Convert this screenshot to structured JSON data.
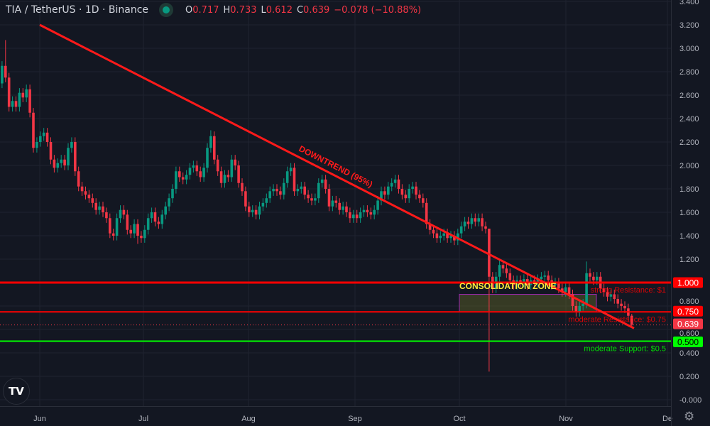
{
  "header": {
    "symbol": "TIA / TetherUS · 1D · Binance",
    "status_color": "#089981",
    "o_label": "O",
    "o": "0.717",
    "h_label": "H",
    "h": "0.733",
    "l_label": "L",
    "l": "0.612",
    "c_label": "C",
    "c": "0.639",
    "change": "−0.078 (−10.88%)"
  },
  "chart_data": {
    "type": "candlestick",
    "interval": "1D",
    "y_ticks": [
      "3.400",
      "3.200",
      "3.000",
      "2.800",
      "2.600",
      "2.400",
      "2.200",
      "2.000",
      "1.800",
      "1.600",
      "1.400",
      "1.200",
      "1.000",
      "0.800",
      "0.600",
      "0.400",
      "0.200",
      "-0.000"
    ],
    "ylim": [
      0,
      3.4
    ],
    "x_ticks": [
      "Jun",
      "Jul",
      "Aug",
      "Sep",
      "Oct",
      "Nov",
      "De"
    ],
    "grid": true,
    "colors": {
      "up": "#089981",
      "down": "#f23645",
      "background": "#131722",
      "grid": "#1f2330"
    },
    "closes": [
      2.7,
      2.85,
      2.75,
      2.5,
      2.55,
      2.5,
      2.62,
      2.58,
      2.65,
      2.45,
      2.15,
      2.2,
      2.25,
      2.28,
      2.2,
      2.05,
      1.98,
      2.02,
      2.05,
      2.0,
      2.15,
      2.2,
      1.95,
      1.82,
      1.78,
      1.75,
      1.72,
      1.68,
      1.62,
      1.65,
      1.6,
      1.55,
      1.42,
      1.4,
      1.55,
      1.62,
      1.58,
      1.45,
      1.42,
      1.5,
      1.4,
      1.38,
      1.45,
      1.55,
      1.6,
      1.52,
      1.5,
      1.58,
      1.65,
      1.72,
      1.8,
      1.95,
      1.9,
      1.88,
      1.92,
      1.98,
      2.0,
      1.95,
      1.9,
      1.98,
      2.15,
      2.25,
      2.05,
      1.95,
      1.85,
      1.92,
      1.9,
      2.05,
      2.0,
      1.85,
      1.78,
      1.65,
      1.6,
      1.62,
      1.58,
      1.65,
      1.68,
      1.72,
      1.78,
      1.8,
      1.78,
      1.75,
      1.85,
      1.95,
      1.98,
      1.78,
      1.8,
      1.82,
      1.75,
      1.72,
      1.7,
      1.72,
      1.85,
      1.88,
      1.8,
      1.65,
      1.7,
      1.68,
      1.62,
      1.65,
      1.6,
      1.55,
      1.58,
      1.55,
      1.6,
      1.62,
      1.6,
      1.58,
      1.62,
      1.7,
      1.78,
      1.75,
      1.82,
      1.85,
      1.88,
      1.8,
      1.75,
      1.72,
      1.8,
      1.82,
      1.75,
      1.72,
      1.68,
      1.5,
      1.45,
      1.42,
      1.38,
      1.4,
      1.42,
      1.38,
      1.4,
      1.36,
      1.42,
      1.48,
      1.52,
      1.5,
      1.55,
      1.52,
      1.55,
      1.48,
      1.46,
      1.05,
      0.95,
      1.05,
      1.15,
      1.12,
      1.08,
      1.02,
      0.98,
      1.02,
      1.0,
      1.03,
      0.98,
      1.02,
      1.0,
      1.03,
      1.05,
      1.06,
      1.02,
      0.98,
      1.0,
      0.95,
      0.92,
      0.96,
      0.9,
      0.8,
      0.75,
      0.8,
      0.82,
      1.08,
      1.05,
      1.02,
      1.05,
      0.95,
      0.92,
      0.88,
      0.9,
      0.86,
      0.82,
      0.8,
      0.78,
      0.717,
      0.639
    ],
    "first_open": 2.6,
    "extremes": [
      {
        "i": 2,
        "h": 3.07
      },
      {
        "i": 61,
        "h": 2.3
      },
      {
        "i": 141,
        "h": 1.46,
        "l": 0.24
      },
      {
        "i": 169,
        "h": 1.18
      },
      {
        "i": 182,
        "h": 0.733,
        "l": 0.612
      },
      {
        "i": 40,
        "l": 1.33
      }
    ],
    "levels": [
      {
        "price": 1.0,
        "badge": "1.000",
        "label": "strong Resistance: $1",
        "color": "#ff0000"
      },
      {
        "price": 0.75,
        "badge": "0.750",
        "label": "moderate Resistance: $0.75",
        "color": "#ff0000"
      },
      {
        "price": 0.5,
        "badge": "0.500",
        "label": "moderate Support: $0.5",
        "color": "#00ff00"
      }
    ],
    "last_price": {
      "price": 0.639,
      "badge": "0.639",
      "color": "#f23645"
    },
    "trendline": {
      "label": "DOWNTREND (95%)",
      "from": {
        "date": "Jun 1",
        "price": 3.2
      },
      "to": {
        "date": "Nov 20",
        "price": 0.61
      },
      "color": "#ff1a1a"
    },
    "zone": {
      "label": "CONSOLIDATION ZONE",
      "from": "Oct 1",
      "to": "Nov 9",
      "low": 0.75,
      "high": 0.9,
      "label_color": "#ffeb3b"
    }
  },
  "logo": "TV",
  "settings_icon": "gear-icon"
}
